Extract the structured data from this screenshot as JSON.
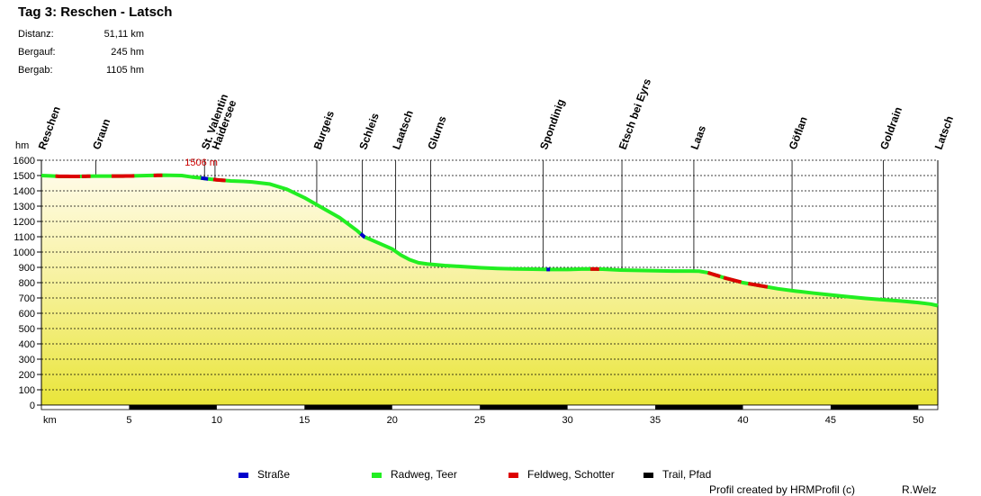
{
  "header": {
    "title": "Tag 3: Reschen - Latsch",
    "stats": [
      {
        "label": "Distanz:",
        "value": "51,11 km"
      },
      {
        "label": "Bergauf:",
        "value": "245 hm"
      },
      {
        "label": "Bergab:",
        "value": "1105 hm"
      }
    ]
  },
  "legend": [
    {
      "label": "Straße",
      "color": "#0000cc"
    },
    {
      "label": "Radweg, Teer",
      "color": "#22ee22"
    },
    {
      "label": "Feldweg, Schotter",
      "color": "#dd0000"
    },
    {
      "label": "Trail, Pfad",
      "color": "#000000"
    }
  ],
  "footer": {
    "credit": "Profil created by HRMProfil (c)",
    "author": "R.Welz"
  },
  "chart_data": {
    "type": "area",
    "title": "Tag 3: Reschen - Latsch",
    "xlabel": "km",
    "ylabel": "hm",
    "xlim": [
      0,
      51.11
    ],
    "ylim": [
      0,
      1600
    ],
    "x_ticks": [
      5,
      10,
      15,
      20,
      25,
      30,
      35,
      40,
      45,
      50
    ],
    "y_ticks": [
      0,
      100,
      200,
      300,
      400,
      500,
      600,
      700,
      800,
      900,
      1000,
      1100,
      1200,
      1300,
      1400,
      1500,
      1600
    ],
    "max_annotation": {
      "label": "1506 m",
      "km": 9.3,
      "elevation": 1506
    },
    "places": [
      {
        "name": "Reschen",
        "km": 0
      },
      {
        "name": "Graun",
        "km": 3.1
      },
      {
        "name": "St. Valentin",
        "km": 9.3
      },
      {
        "name": "Haidersee",
        "km": 9.9
      },
      {
        "name": "Burgeis",
        "km": 15.7
      },
      {
        "name": "Schleis",
        "km": 18.3
      },
      {
        "name": "Laatsch",
        "km": 20.2
      },
      {
        "name": "Glurns",
        "km": 22.2
      },
      {
        "name": "Spondinig",
        "km": 28.6
      },
      {
        "name": "Etsch bei Eyrs",
        "km": 33.1
      },
      {
        "name": "Laas",
        "km": 37.2
      },
      {
        "name": "Göflan",
        "km": 42.8
      },
      {
        "name": "Goldrain",
        "km": 48.0
      },
      {
        "name": "Latsch",
        "km": 51.11
      }
    ],
    "profile": [
      [
        0,
        1500
      ],
      [
        0.5,
        1498
      ],
      [
        1,
        1495
      ],
      [
        2,
        1494
      ],
      [
        3,
        1496
      ],
      [
        4,
        1496
      ],
      [
        5,
        1497
      ],
      [
        6,
        1500
      ],
      [
        7,
        1502
      ],
      [
        8,
        1500
      ],
      [
        8.6,
        1490
      ],
      [
        9,
        1485
      ],
      [
        9.5,
        1478
      ],
      [
        10,
        1472
      ],
      [
        10.8,
        1465
      ],
      [
        11.5,
        1462
      ],
      [
        12,
        1458
      ],
      [
        13,
        1445
      ],
      [
        14,
        1410
      ],
      [
        15,
        1355
      ],
      [
        16,
        1290
      ],
      [
        17,
        1225
      ],
      [
        18,
        1140
      ],
      [
        18.4,
        1100
      ],
      [
        19,
        1070
      ],
      [
        19.5,
        1045
      ],
      [
        20,
        1020
      ],
      [
        20.5,
        980
      ],
      [
        21,
        950
      ],
      [
        21.5,
        930
      ],
      [
        22,
        922
      ],
      [
        23,
        912
      ],
      [
        24,
        905
      ],
      [
        25,
        898
      ],
      [
        26,
        893
      ],
      [
        27,
        890
      ],
      [
        28,
        888
      ],
      [
        29,
        886
      ],
      [
        30,
        886
      ],
      [
        31,
        890
      ],
      [
        32,
        888
      ],
      [
        33,
        882
      ],
      [
        34,
        880
      ],
      [
        35,
        878
      ],
      [
        36,
        876
      ],
      [
        37,
        876
      ],
      [
        37.5,
        875
      ],
      [
        38,
        865
      ],
      [
        39,
        830
      ],
      [
        40,
        800
      ],
      [
        41,
        780
      ],
      [
        42,
        760
      ],
      [
        43,
        745
      ],
      [
        44,
        732
      ],
      [
        45,
        720
      ],
      [
        46,
        708
      ],
      [
        47,
        697
      ],
      [
        48,
        688
      ],
      [
        49,
        680
      ],
      [
        50,
        670
      ],
      [
        50.7,
        660
      ],
      [
        51.11,
        650
      ]
    ],
    "surface_segments": [
      {
        "type": "Feldweg, Schotter",
        "from": 0.8,
        "to": 2.2
      },
      {
        "type": "Feldweg, Schotter",
        "from": 2.3,
        "to": 2.8
      },
      {
        "type": "Feldweg, Schotter",
        "from": 4.0,
        "to": 5.3
      },
      {
        "type": "Feldweg, Schotter",
        "from": 6.4,
        "to": 6.9
      },
      {
        "type": "Straße",
        "from": 9.1,
        "to": 9.5
      },
      {
        "type": "Feldweg, Schotter",
        "from": 9.8,
        "to": 10.5
      },
      {
        "type": "Straße",
        "from": 18.2,
        "to": 18.45
      },
      {
        "type": "Straße",
        "from": 28.8,
        "to": 29.0
      },
      {
        "type": "Feldweg, Schotter",
        "from": 31.3,
        "to": 31.8
      },
      {
        "type": "Feldweg, Schotter",
        "from": 38.0,
        "to": 38.7
      },
      {
        "type": "Feldweg, Schotter",
        "from": 38.9,
        "to": 39.9
      },
      {
        "type": "Feldweg, Schotter",
        "from": 40.3,
        "to": 41.4
      }
    ],
    "trail_bars": [
      {
        "from": 5,
        "to": 10
      },
      {
        "from": 15,
        "to": 20
      },
      {
        "from": 25,
        "to": 30
      },
      {
        "from": 35,
        "to": 40
      },
      {
        "from": 45,
        "to": 50
      }
    ]
  }
}
